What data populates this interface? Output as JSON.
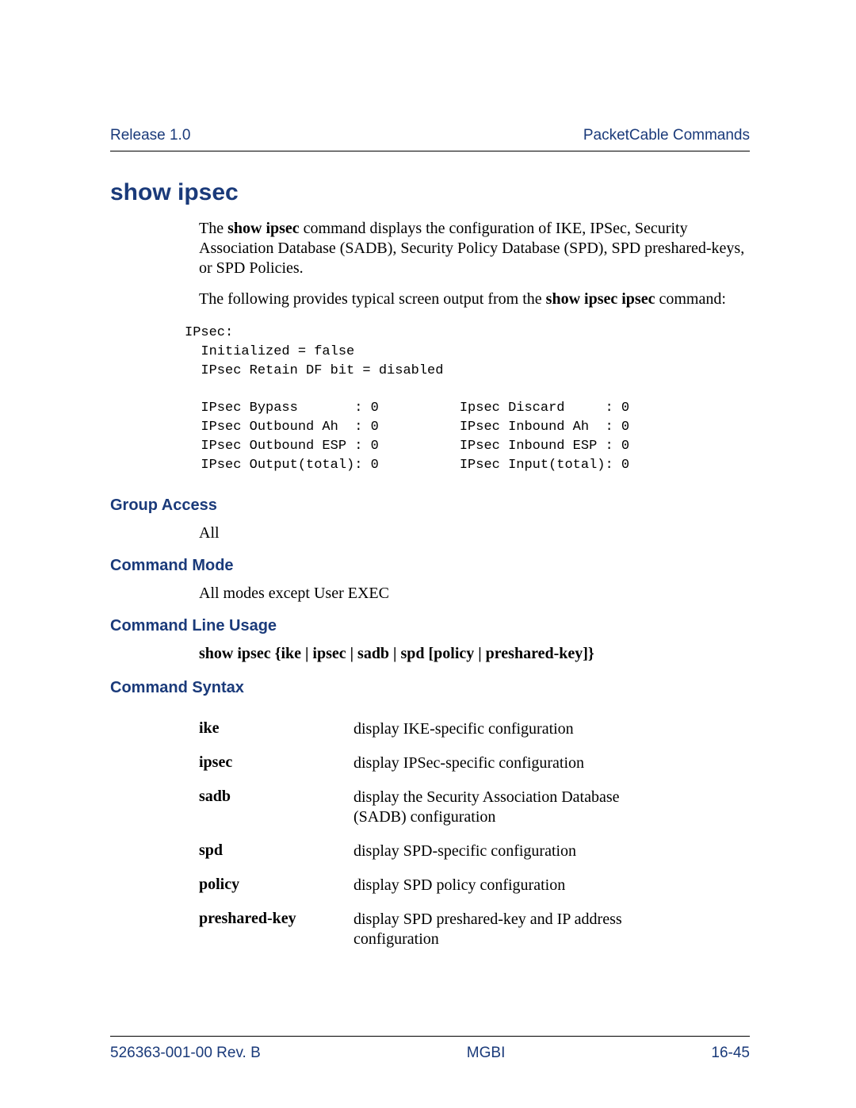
{
  "header": {
    "left": "Release 1.0",
    "right": "PacketCable Commands"
  },
  "title": "show ipsec",
  "intro_para_html": "The <b>show ipsec</b> command displays the configuration of IKE, IPSec, Security Association Database (SADB), Security Policy Database (SPD), SPD preshared-keys, or SPD Policies.",
  "output_para_html": "The following provides typical screen output from the <b>show ipsec ipsec</b> command:",
  "code_output": "IPsec:\n  Initialized = false\n  IPsec Retain DF bit = disabled\n\n  IPsec Bypass       : 0          Ipsec Discard     : 0\n  IPsec Outbound Ah  : 0          IPsec Inbound Ah  : 0\n  IPsec Outbound ESP : 0          IPsec Inbound ESP : 0\n  IPsec Output(total): 0          IPsec Input(total): 0",
  "sections": {
    "group_access": {
      "heading": "Group Access",
      "body": "All"
    },
    "command_mode": {
      "heading": "Command Mode",
      "body": "All modes except User EXEC"
    },
    "command_line_usage": {
      "heading": "Command Line Usage",
      "body": "show ipsec {ike | ipsec | sadb | spd [policy | preshared-key]}"
    },
    "command_syntax": {
      "heading": "Command Syntax"
    }
  },
  "syntax_table": [
    {
      "term": "ike",
      "desc": "display IKE-specific configuration"
    },
    {
      "term": "ipsec",
      "desc": "display IPSec-specific configuration"
    },
    {
      "term": "sadb",
      "desc": "display the Security Association Database (SADB) configuration"
    },
    {
      "term": "spd",
      "desc": "display SPD-specific configuration"
    },
    {
      "term": "policy",
      "desc": "display SPD policy configuration"
    },
    {
      "term": "preshared-key",
      "desc": "display SPD preshared-key and IP address configuration"
    }
  ],
  "footer": {
    "left": "526363-001-00 Rev. B",
    "center": "MGBI",
    "right": "16-45"
  },
  "colors": {
    "brand_blue": "#1a3a7a",
    "text_black": "#000000",
    "background": "#ffffff"
  },
  "typography": {
    "body_font": "Times New Roman",
    "heading_font": "Arial",
    "code_font": "Courier New",
    "title_size_pt": 22,
    "body_size_pt": 15,
    "header_size_pt": 14,
    "code_size_pt": 13
  }
}
